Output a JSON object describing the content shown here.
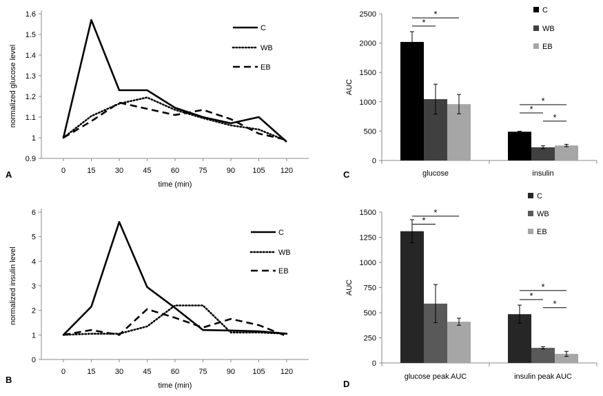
{
  "chart_data": [
    {
      "panel": "A",
      "type": "line",
      "x": [
        0,
        15,
        30,
        45,
        60,
        75,
        90,
        105,
        120
      ],
      "xlabel": "time (min)",
      "ylabel": "normalized glucose level",
      "ylim": [
        0.9,
        1.6
      ],
      "yticks": [
        "0.9",
        "1",
        "1.1",
        "1.2",
        "1.3",
        "1.4",
        "1.5",
        "1.6"
      ],
      "legend_position": "top-right",
      "series": [
        {
          "name": "C",
          "style": "solid",
          "values": [
            1.0,
            1.57,
            1.23,
            1.23,
            1.145,
            1.1,
            1.07,
            1.1,
            0.98
          ]
        },
        {
          "name": "WB",
          "style": "dotted",
          "values": [
            1.0,
            1.105,
            1.165,
            1.195,
            1.135,
            1.095,
            1.06,
            1.04,
            0.985
          ]
        },
        {
          "name": "EB",
          "style": "dashed",
          "values": [
            1.0,
            1.08,
            1.17,
            1.14,
            1.11,
            1.135,
            1.09,
            1.02,
            0.99
          ]
        }
      ]
    },
    {
      "panel": "B",
      "type": "line",
      "x": [
        0,
        15,
        30,
        45,
        60,
        75,
        90,
        105,
        120
      ],
      "xlabel": "time (min)",
      "ylabel": "normalized insulin level",
      "ylim": [
        0,
        6
      ],
      "yticks": [
        "0",
        "1",
        "2",
        "3",
        "4",
        "5",
        "6"
      ],
      "legend_position": "top-right",
      "series": [
        {
          "name": "C",
          "style": "solid",
          "values": [
            1.0,
            2.15,
            5.6,
            2.95,
            2.1,
            1.2,
            1.18,
            1.15,
            1.05
          ]
        },
        {
          "name": "WB",
          "style": "dotted",
          "values": [
            1.0,
            1.05,
            1.05,
            1.35,
            2.2,
            2.2,
            1.1,
            1.1,
            1.05
          ]
        },
        {
          "name": "EB",
          "style": "dashed",
          "values": [
            1.0,
            1.2,
            1.0,
            2.05,
            1.7,
            1.3,
            1.65,
            1.4,
            0.95
          ]
        }
      ]
    },
    {
      "panel": "C",
      "type": "bar",
      "categories": [
        "glucose",
        "insulin"
      ],
      "ylabel": "AUC",
      "ylim": [
        0,
        2500
      ],
      "yticks": [
        "0",
        "500",
        "1000",
        "1500",
        "2000",
        "2500"
      ],
      "legend_position": "top-right",
      "series": [
        {
          "name": "C",
          "color": "#000000",
          "values": [
            2020,
            490
          ],
          "errors": [
            175,
            8
          ]
        },
        {
          "name": "WB",
          "color": "#404040",
          "values": [
            1045,
            225
          ],
          "errors": [
            255,
            25
          ]
        },
        {
          "name": "EB",
          "color": "#a6a6a6",
          "values": [
            960,
            255
          ],
          "errors": [
            165,
            20
          ]
        }
      ],
      "significance": [
        {
          "category": 0,
          "from": 0,
          "to": 1,
          "y": 2290,
          "label": "*"
        },
        {
          "category": 0,
          "from": 0,
          "to": 2,
          "y": 2430,
          "label": "*"
        },
        {
          "category": 1,
          "from": 0,
          "to": 1,
          "y": 810,
          "label": "*"
        },
        {
          "category": 1,
          "from": 0,
          "to": 2,
          "y": 950,
          "label": "*"
        },
        {
          "category": 1,
          "from": 1,
          "to": 2,
          "y": 670,
          "label": "*"
        }
      ]
    },
    {
      "panel": "D",
      "type": "bar",
      "categories": [
        "glucose peak AUC",
        "insulin peak AUC"
      ],
      "ylabel": "AUC",
      "ylim": [
        0,
        1500
      ],
      "yticks": [
        "0",
        "250",
        "500",
        "750",
        "1000",
        "1250",
        "1500"
      ],
      "legend_position": "top-right",
      "series": [
        {
          "name": "C",
          "color": "#262626",
          "values": [
            1310,
            485
          ],
          "errors": [
            115,
            90
          ]
        },
        {
          "name": "WB",
          "color": "#595959",
          "values": [
            590,
            150
          ],
          "errors": [
            190,
            12
          ]
        },
        {
          "name": "EB",
          "color": "#a6a6a6",
          "values": [
            410,
            90
          ],
          "errors": [
            35,
            25
          ]
        }
      ],
      "significance": [
        {
          "category": 0,
          "from": 0,
          "to": 1,
          "y": 1380,
          "label": "*"
        },
        {
          "category": 0,
          "from": 0,
          "to": 2,
          "y": 1460,
          "label": "*"
        },
        {
          "category": 1,
          "from": 0,
          "to": 1,
          "y": 630,
          "label": "*"
        },
        {
          "category": 1,
          "from": 0,
          "to": 2,
          "y": 720,
          "label": "*"
        },
        {
          "category": 1,
          "from": 1,
          "to": 2,
          "y": 550,
          "label": "*"
        }
      ]
    }
  ]
}
